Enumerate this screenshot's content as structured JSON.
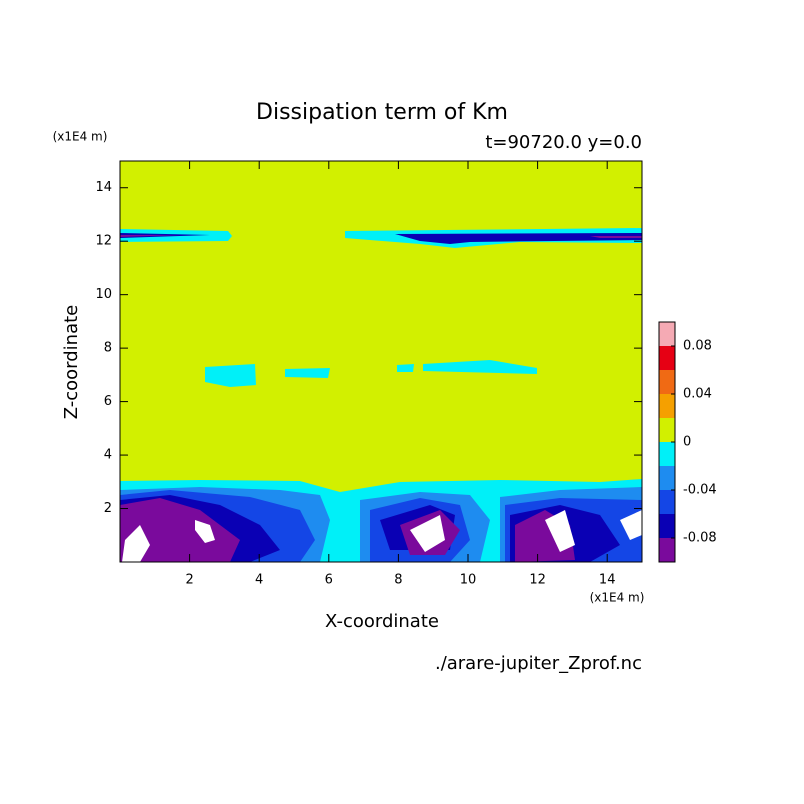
{
  "chart_data": {
    "type": "contour",
    "title": "Dissipation term of Km",
    "subtitle": "t=90720.0 y=0.0",
    "x_label": "X-coordinate",
    "y_label": "Z-coordinate",
    "x_unit": "(x1E4 m)",
    "y_unit": "(x1E4 m)",
    "source": "./arare-jupiter_Zprof.nc",
    "xlim": [
      0,
      15
    ],
    "xticks": [
      2,
      4,
      6,
      8,
      10,
      12,
      14
    ],
    "ylim": [
      0,
      15
    ],
    "yticks": [
      2,
      4,
      6,
      8,
      10,
      12,
      14
    ],
    "levels": [
      -0.1,
      -0.08,
      -0.06,
      -0.04,
      -0.02,
      0,
      0.02,
      0.04,
      0.06,
      0.08,
      0.1
    ],
    "colors": [
      "#7a0a9c",
      "#0a00b4",
      "#1446e6",
      "#1e8cf0",
      "#00f0f8",
      "#d2f000",
      "#f5a000",
      "#f06a14",
      "#e60014",
      "#f5aab4"
    ],
    "colorbar_ticks": [
      -0.08,
      -0.04,
      0,
      0.04,
      0.08
    ]
  }
}
